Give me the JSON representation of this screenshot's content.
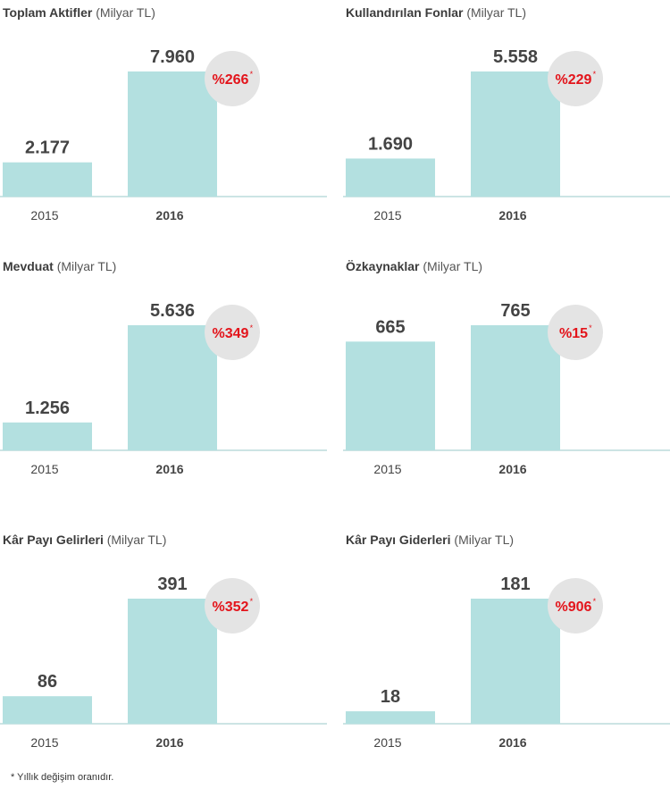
{
  "unit": "(Milyar TL)",
  "footnote": "* Yıllık değişim oranıdır.",
  "colors": {
    "bar": "#b3e0e0",
    "circle": "#e4e4e4",
    "change": "#e3141b",
    "baseline": "#bcdcdc",
    "text": "#444444"
  },
  "chart_data": [
    {
      "type": "bar",
      "title": "Toplam Aktifler",
      "categories": [
        "2015",
        "2016"
      ],
      "values": [
        2177,
        7960
      ],
      "value_labels": [
        "2.177",
        "7.960"
      ],
      "change_label": "%266",
      "change_mark": "*"
    },
    {
      "type": "bar",
      "title": "Kullandırılan Fonlar",
      "categories": [
        "2015",
        "2016"
      ],
      "values": [
        1690,
        5558
      ],
      "value_labels": [
        "1.690",
        "5.558"
      ],
      "change_label": "%229",
      "change_mark": "*"
    },
    {
      "type": "bar",
      "title": "Mevduat",
      "categories": [
        "2015",
        "2016"
      ],
      "values": [
        1256,
        5636
      ],
      "value_labels": [
        "1.256",
        "5.636"
      ],
      "change_label": "%349",
      "change_mark": "*"
    },
    {
      "type": "bar",
      "title": "Özkaynaklar",
      "categories": [
        "2015",
        "2016"
      ],
      "values": [
        665,
        765
      ],
      "value_labels": [
        "665",
        "765"
      ],
      "change_label": "%15",
      "change_mark": "*"
    },
    {
      "type": "bar",
      "title": "Kâr Payı Gelirleri",
      "categories": [
        "2015",
        "2016"
      ],
      "values": [
        86,
        391
      ],
      "value_labels": [
        "86",
        "391"
      ],
      "change_label": "%352",
      "change_mark": "*"
    },
    {
      "type": "bar",
      "title": "Kâr Payı Giderleri",
      "categories": [
        "2015",
        "2016"
      ],
      "values": [
        18,
        181
      ],
      "value_labels": [
        "18",
        "181"
      ],
      "change_label": "%906",
      "change_mark": "*"
    }
  ]
}
